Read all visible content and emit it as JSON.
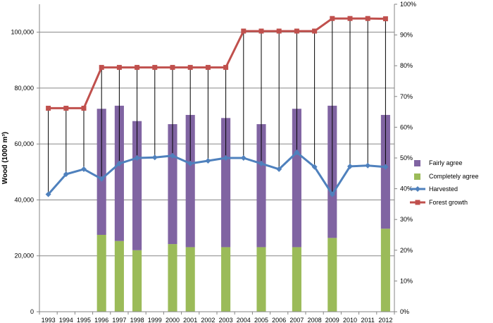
{
  "chart_data": {
    "type": "bar",
    "categories": [
      "1993",
      "1994",
      "1995",
      "1996",
      "1997",
      "1998",
      "1999",
      "2000",
      "2001",
      "2002",
      "2003",
      "2004",
      "2005",
      "2006",
      "2007",
      "2008",
      "2009",
      "2010",
      "2011",
      "2012"
    ],
    "ylabel": "Wood (1000 m³)",
    "ylim": [
      0,
      110000
    ],
    "y_ticks": [
      "0",
      "20,000",
      "40,000",
      "60,000",
      "80,000",
      "100,000"
    ],
    "y_tick_values": [
      0,
      20000,
      40000,
      60000,
      80000,
      100000
    ],
    "y2lim": [
      0,
      1.0
    ],
    "y2_ticks": [
      "0%",
      "10%",
      "20%",
      "30%",
      "40%",
      "50%",
      "60%",
      "70%",
      "80%",
      "90%",
      "100%"
    ],
    "y2_tick_values": [
      0,
      0.1,
      0.2,
      0.3,
      0.4,
      0.5,
      0.6,
      0.7,
      0.8,
      0.9,
      1.0
    ],
    "grid": true,
    "legend_position": "right",
    "stacked_bars_axis": "secondary",
    "series": [
      {
        "name": "Fairly agree",
        "kind": "bar",
        "color": "#8064a2",
        "values": [
          null,
          null,
          null,
          0.41,
          0.44,
          0.42,
          null,
          0.39,
          0.43,
          null,
          0.42,
          null,
          0.4,
          null,
          0.45,
          null,
          0.43,
          null,
          null,
          0.37
        ]
      },
      {
        "name": "Completely agree",
        "kind": "bar",
        "color": "#9bbb59",
        "values": [
          null,
          null,
          null,
          0.25,
          0.23,
          0.2,
          null,
          0.22,
          0.21,
          null,
          0.21,
          null,
          0.21,
          null,
          0.21,
          null,
          0.24,
          null,
          null,
          0.27
        ]
      },
      {
        "name": "Harvested",
        "kind": "line",
        "color": "#4f81bd",
        "marker": "diamond",
        "values": [
          42000,
          49200,
          51000,
          47500,
          53000,
          55000,
          55200,
          55800,
          53000,
          54000,
          55000,
          55000,
          53000,
          51000,
          57000,
          51800,
          42000,
          52000,
          52300,
          51800
        ]
      },
      {
        "name": "Forest growth",
        "kind": "line",
        "color": "#c0504d",
        "marker": "square",
        "values": [
          72800,
          72800,
          72800,
          87400,
          87400,
          87400,
          87400,
          87400,
          87400,
          87400,
          87400,
          100400,
          100400,
          100400,
          100400,
          100400,
          104900,
          104900,
          104900,
          104800
        ]
      }
    ]
  }
}
